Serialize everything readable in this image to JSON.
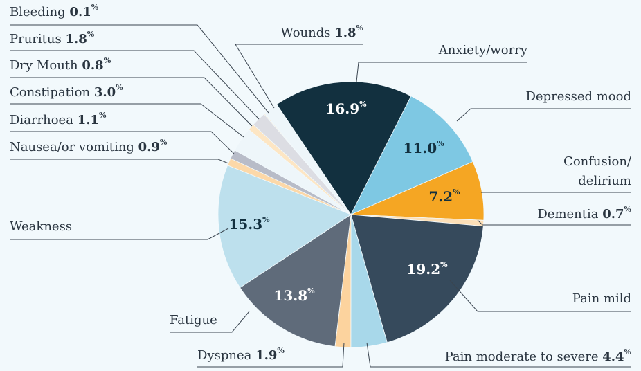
{
  "chart_data": {
    "type": "pie",
    "categories": [
      "Anxiety/worry",
      "Depressed mood",
      "Confusion/delirium",
      "Dementia",
      "Pain mild",
      "Pain moderate to severe",
      "Dyspnea",
      "Fatigue",
      "Weakness",
      "Nausea/or vomiting",
      "Diarrhoea",
      "Constipation",
      "Dry Mouth",
      "Pruritus",
      "Bleeding",
      "Wounds"
    ],
    "values": [
      16.9,
      11.0,
      7.2,
      0.7,
      19.2,
      4.4,
      1.9,
      13.8,
      15.3,
      0.9,
      1.1,
      3.0,
      0.8,
      1.8,
      0.1,
      1.8
    ],
    "value_labels": [
      "16.9%",
      "11.0%",
      "7.2%",
      "0.7%",
      "19.2%",
      "4.4%",
      "1.9%",
      "13.8%",
      "15.3%",
      "0.9%",
      "1.1%",
      "3.0%",
      "0.8%",
      "1.8%",
      "0.1%",
      "1.8%"
    ],
    "colors": [
      "#12303f",
      "#7ec8e3",
      "#f5a623",
      "#fde0b8",
      "#364a5c",
      "#a8d8ea",
      "#fcd39e",
      "#5f6b7a",
      "#bde0ed",
      "#fcd8a8",
      "#b8bcc8",
      "#eef6fa",
      "#fde6c4",
      "#dcdde3",
      "#fde0b8",
      "#eef6fa"
    ]
  }
}
